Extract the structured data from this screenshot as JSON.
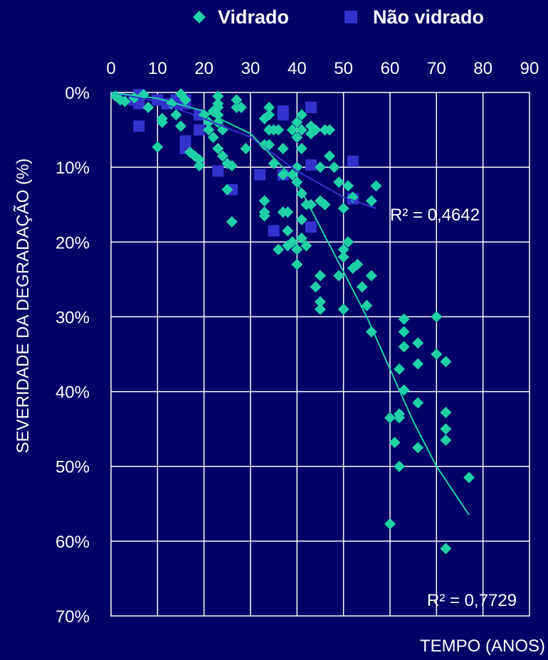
{
  "chart_data": {
    "type": "scatter",
    "xlabel": "TEMPO (ANOS)",
    "ylabel": "SEVERIDADE DA DEGRADAÇÃO (%)",
    "xlim": [
      0,
      90
    ],
    "ylim": [
      0,
      70
    ],
    "x_ticks": [
      "0",
      "10",
      "20",
      "30",
      "40",
      "50",
      "60",
      "70",
      "80",
      "90"
    ],
    "y_ticks": [
      "0%",
      "10%",
      "20%",
      "30%",
      "40%",
      "50%",
      "60%",
      "70%"
    ],
    "y_reversed": true,
    "grid": true,
    "legend_position": "top",
    "legend": [
      "Vidrado",
      "Não vidrado"
    ],
    "series": [
      {
        "name": "Vidrado",
        "marker": "diamond",
        "color": "#1fd1a7",
        "points": [
          [
            1,
            0.5
          ],
          [
            2,
            1
          ],
          [
            3,
            1.2
          ],
          [
            5,
            0.7
          ],
          [
            7,
            0.3
          ],
          [
            8,
            2
          ],
          [
            10,
            7.3
          ],
          [
            11,
            3.5
          ],
          [
            11,
            4
          ],
          [
            13,
            1.5
          ],
          [
            14,
            3
          ],
          [
            15,
            4.5
          ],
          [
            15,
            0.2
          ],
          [
            16,
            1
          ],
          [
            17,
            8
          ],
          [
            18,
            8.5
          ],
          [
            19,
            9
          ],
          [
            19,
            9.8
          ],
          [
            20,
            3
          ],
          [
            21,
            4
          ],
          [
            21,
            5
          ],
          [
            22,
            6
          ],
          [
            22,
            2.5
          ],
          [
            23,
            1.5
          ],
          [
            23,
            0.5
          ],
          [
            23,
            2
          ],
          [
            23,
            3
          ],
          [
            23,
            4
          ],
          [
            23,
            7.5
          ],
          [
            24,
            5
          ],
          [
            24,
            8.5
          ],
          [
            25,
            9.5
          ],
          [
            25,
            13
          ],
          [
            26,
            9.8
          ],
          [
            26,
            17.3
          ],
          [
            27,
            2
          ],
          [
            27,
            1
          ],
          [
            28,
            2
          ],
          [
            29,
            7.5
          ],
          [
            33,
            3.5
          ],
          [
            33,
            7
          ],
          [
            33,
            14.5
          ],
          [
            33,
            16
          ],
          [
            33,
            16.5
          ],
          [
            34,
            2
          ],
          [
            34,
            3
          ],
          [
            34,
            5
          ],
          [
            34,
            7
          ],
          [
            35,
            5
          ],
          [
            35,
            9.5
          ],
          [
            36,
            5
          ],
          [
            36,
            21
          ],
          [
            37,
            7.5
          ],
          [
            37,
            11
          ],
          [
            37,
            16
          ],
          [
            38,
            16
          ],
          [
            38,
            18.5
          ],
          [
            38,
            20.5
          ],
          [
            39,
            5
          ],
          [
            39,
            11
          ],
          [
            39,
            20
          ],
          [
            40,
            4
          ],
          [
            40,
            6
          ],
          [
            40,
            10
          ],
          [
            40,
            12
          ],
          [
            40,
            21
          ],
          [
            40,
            23
          ],
          [
            41,
            3
          ],
          [
            41,
            5
          ],
          [
            41,
            7.5
          ],
          [
            41,
            13.5
          ],
          [
            41,
            17
          ],
          [
            41,
            19.5
          ],
          [
            42,
            15
          ],
          [
            42,
            20.5
          ],
          [
            43,
            4.5
          ],
          [
            43,
            5.5
          ],
          [
            43,
            15
          ],
          [
            44,
            5
          ],
          [
            44,
            26
          ],
          [
            45,
            10
          ],
          [
            45,
            14.5
          ],
          [
            45,
            24.5
          ],
          [
            45,
            28
          ],
          [
            45,
            29
          ],
          [
            46,
            15
          ],
          [
            46,
            5
          ],
          [
            47,
            5
          ],
          [
            47,
            8.5
          ],
          [
            48,
            10
          ],
          [
            49,
            12
          ],
          [
            49,
            24.5
          ],
          [
            50,
            15.5
          ],
          [
            50,
            21
          ],
          [
            50,
            22
          ],
          [
            50,
            29
          ],
          [
            51,
            12.5
          ],
          [
            51,
            20
          ],
          [
            52,
            23.5
          ],
          [
            52,
            14
          ],
          [
            53,
            23
          ],
          [
            54,
            26
          ],
          [
            55,
            28.5
          ],
          [
            56,
            32
          ],
          [
            56,
            24.5
          ],
          [
            56,
            14.5
          ],
          [
            57,
            12.5
          ],
          [
            60,
            43.5
          ],
          [
            61,
            46.8
          ],
          [
            62,
            37
          ],
          [
            62,
            43
          ],
          [
            62,
            43.5
          ],
          [
            62,
            50
          ],
          [
            63,
            30.3
          ],
          [
            63,
            32
          ],
          [
            63,
            34
          ],
          [
            63,
            39.8
          ],
          [
            60,
            57.7
          ],
          [
            66,
            33.5
          ],
          [
            66,
            36.3
          ],
          [
            66,
            41.5
          ],
          [
            66,
            47.5
          ],
          [
            70,
            30
          ],
          [
            70,
            35
          ],
          [
            72,
            36
          ],
          [
            72,
            42.8
          ],
          [
            72,
            45
          ],
          [
            72,
            46.5
          ],
          [
            72,
            61
          ],
          [
            77,
            51.5
          ]
        ],
        "r2_label": "R² = 0,4642",
        "trend_points": [
          [
            0,
            0
          ],
          [
            10,
            1.2
          ],
          [
            20,
            3.5
          ],
          [
            30,
            6
          ],
          [
            40,
            10.5
          ],
          [
            50,
            14
          ],
          [
            57,
            15.5
          ]
        ]
      },
      {
        "name": "Não vidrado",
        "marker": "square",
        "color": "#3333cc",
        "points": [
          [
            5,
            1
          ],
          [
            6,
            0.3
          ],
          [
            6,
            1.5
          ],
          [
            6,
            4.5
          ],
          [
            10,
            1
          ],
          [
            12,
            1.5
          ],
          [
            14,
            1
          ],
          [
            15,
            1.5
          ],
          [
            16,
            1
          ],
          [
            16,
            1.5
          ],
          [
            16,
            6.5
          ],
          [
            16,
            7
          ],
          [
            16,
            7.5
          ],
          [
            19,
            3
          ],
          [
            19,
            5
          ],
          [
            23,
            10.5
          ],
          [
            26,
            13
          ],
          [
            32,
            11
          ],
          [
            35,
            18.5
          ],
          [
            37,
            2.5
          ],
          [
            37,
            3
          ],
          [
            37,
            11
          ],
          [
            43,
            2
          ],
          [
            43,
            9.7
          ],
          [
            43,
            18
          ],
          [
            52,
            9.2
          ],
          [
            52,
            14.2
          ]
        ],
        "r2_label": "R² = 0,7729",
        "trend_points": [
          [
            0,
            0
          ],
          [
            10,
            0.8
          ],
          [
            20,
            2.5
          ],
          [
            30,
            5.5
          ],
          [
            40,
            12
          ],
          [
            45,
            18
          ],
          [
            50,
            24
          ],
          [
            55,
            30
          ],
          [
            60,
            37
          ],
          [
            65,
            44
          ],
          [
            70,
            50
          ],
          [
            77,
            56.5
          ]
        ]
      }
    ]
  }
}
